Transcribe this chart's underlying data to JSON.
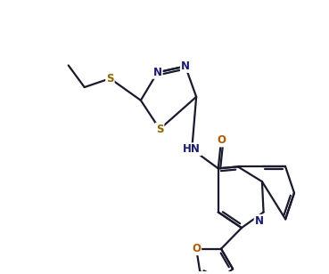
{
  "bg_color": "#ffffff",
  "line_color": "#1a1a2e",
  "atom_colors": {
    "N": "#1a1a6e",
    "O": "#b35900",
    "S": "#8a6500",
    "C": "#1a1a2e"
  },
  "font_size": 8.5,
  "line_width": 1.6
}
